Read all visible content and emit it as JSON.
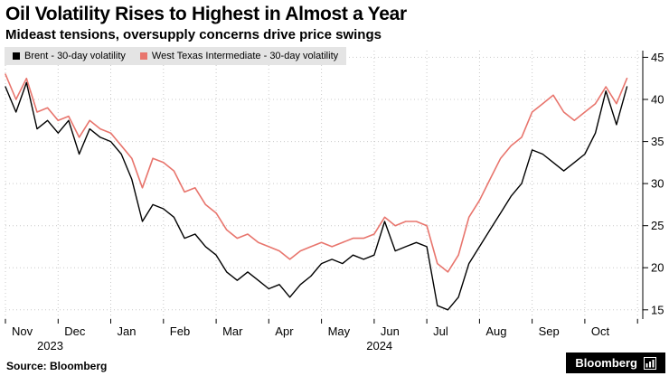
{
  "chart_data": {
    "type": "line",
    "title": "Oil Volatility Rises to Highest in Almost a Year",
    "subtitle": "Mideast tensions, oversupply concerns drive price swings",
    "x_unit": "months, Nov 2023 through Oct 2024",
    "x_start": 0,
    "x_step": 0.2,
    "xlim": [
      0,
      12.1
    ],
    "ylim": [
      13.9,
      45.8
    ],
    "grid": true,
    "legend_position": "top-left",
    "y_ticks": [
      15,
      20,
      25,
      30,
      35,
      40,
      45
    ],
    "x_ticks": [
      {
        "pos": 0,
        "label": "Nov"
      },
      {
        "pos": 1,
        "label": "Dec"
      },
      {
        "pos": 2,
        "label": "Jan"
      },
      {
        "pos": 3,
        "label": "Feb"
      },
      {
        "pos": 4,
        "label": "Mar"
      },
      {
        "pos": 5,
        "label": "Apr"
      },
      {
        "pos": 6,
        "label": "May"
      },
      {
        "pos": 7,
        "label": "Jun"
      },
      {
        "pos": 8,
        "label": "Jul"
      },
      {
        "pos": 9,
        "label": "Aug"
      },
      {
        "pos": 10,
        "label": "Sep"
      },
      {
        "pos": 11,
        "label": "Oct"
      },
      {
        "pos": 12,
        "label": ""
      }
    ],
    "year_labels": [
      {
        "pos": 0.85,
        "label": "2023"
      },
      {
        "pos": 7.1,
        "label": "2024"
      }
    ],
    "series": [
      {
        "name": "Brent - 30-day volatility",
        "color": "#000000",
        "stroke_width": 1.4,
        "values": [
          41.5,
          38.5,
          42,
          36.5,
          37.5,
          36,
          37.5,
          33.5,
          36.5,
          35.5,
          35,
          33.5,
          30.5,
          25.5,
          27.5,
          27,
          26,
          23.5,
          24,
          22.5,
          21.5,
          19.5,
          18.5,
          19.5,
          18.5,
          17.5,
          18,
          16.5,
          18,
          19,
          20.5,
          21,
          20.5,
          21.5,
          21,
          21.5,
          25.5,
          22,
          22.5,
          23,
          22.5,
          15.5,
          15,
          16.5,
          20.5,
          22.5,
          24.5,
          26.5,
          28.5,
          30,
          34,
          33.5,
          32.5,
          31.5,
          32.5,
          33.5,
          36,
          41,
          37,
          41.5
        ]
      },
      {
        "name": "West Texas Intermediate - 30-day volatility",
        "color": "#e8756d",
        "stroke_width": 1.6,
        "values": [
          43,
          40,
          42.5,
          38.5,
          39,
          37.5,
          38,
          35.5,
          37.5,
          36.5,
          36,
          34.5,
          33,
          29.5,
          33,
          32.5,
          31.5,
          29,
          29.5,
          27.5,
          26.5,
          24.5,
          23.5,
          24,
          23,
          22.5,
          22,
          21,
          22,
          22.5,
          23,
          22.5,
          23,
          23.5,
          23.5,
          24,
          26,
          25,
          25.5,
          25.5,
          25,
          20.5,
          19.5,
          21.5,
          26,
          28,
          30.5,
          33,
          34.5,
          35.5,
          38.5,
          39.5,
          40.5,
          38.5,
          37.5,
          38.5,
          39.5,
          41.5,
          39.5,
          42.5
        ]
      }
    ]
  },
  "footer": {
    "source": "Source: Bloomberg",
    "logo_text": "Bloomberg"
  }
}
